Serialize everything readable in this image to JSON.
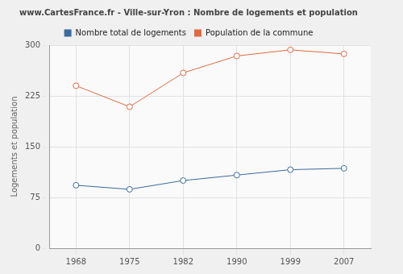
{
  "chart_data": {
    "type": "line",
    "title": "www.CartesFrance.fr - Ville-sur-Yron : Nombre de logements et population",
    "y_label": "Logements et population",
    "categories": [
      "1968",
      "1975",
      "1982",
      "1990",
      "1999",
      "2007"
    ],
    "series": [
      {
        "name": "Nombre total de logements",
        "color": "#3a6b9e",
        "values": [
          93,
          87,
          100,
          108,
          116,
          118
        ],
        "marker": "circle"
      },
      {
        "name": "Population de la commune",
        "color": "#e06b40",
        "values": [
          240,
          209,
          259,
          284,
          293,
          287
        ],
        "marker": "circle"
      }
    ],
    "ylim": [
      0,
      300
    ],
    "yticks": [
      0,
      75,
      150,
      225,
      300
    ],
    "grid": true,
    "legend": "top"
  }
}
